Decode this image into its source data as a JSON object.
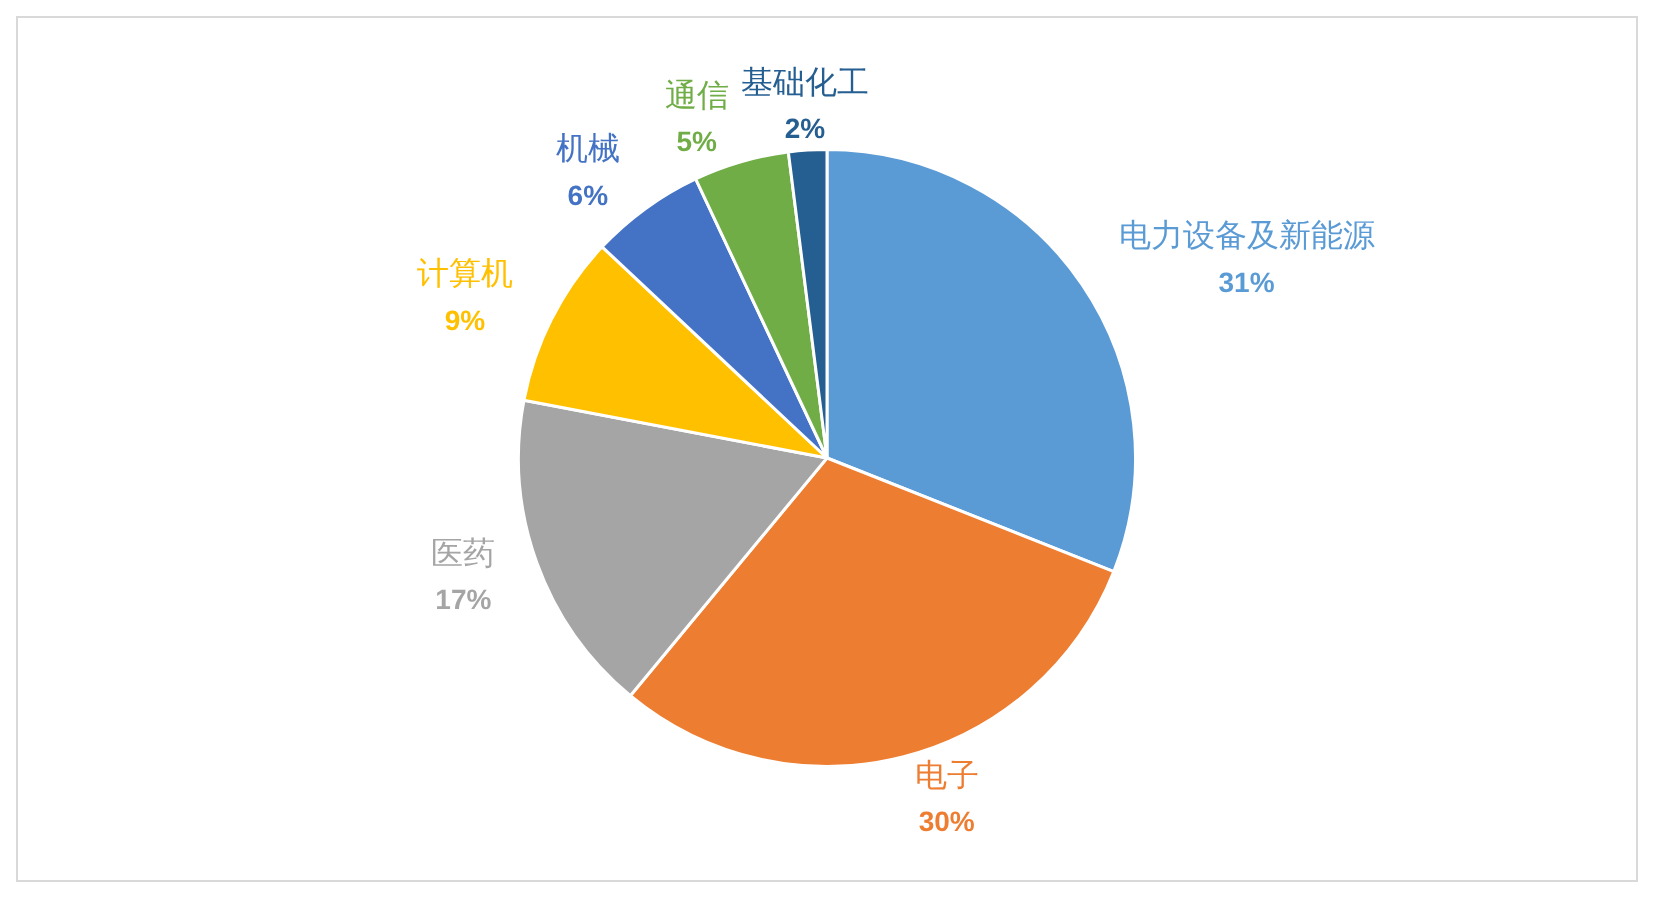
{
  "chart_data": {
    "type": "pie",
    "categories": [
      "电力设备及新能源",
      "电子",
      "医药",
      "计算机",
      "机械",
      "通信",
      "基础化工"
    ],
    "values": [
      31,
      30,
      17,
      9,
      6,
      5,
      2
    ],
    "colors": [
      "#5b9bd5",
      "#ed7d31",
      "#a5a5a5",
      "#ffc000",
      "#4472c4",
      "#70ad47",
      "#255e91"
    ],
    "value_labels": [
      "31%",
      "30%",
      "17%",
      "9%",
      "6%",
      "5%",
      "2%"
    ],
    "legend": false
  }
}
